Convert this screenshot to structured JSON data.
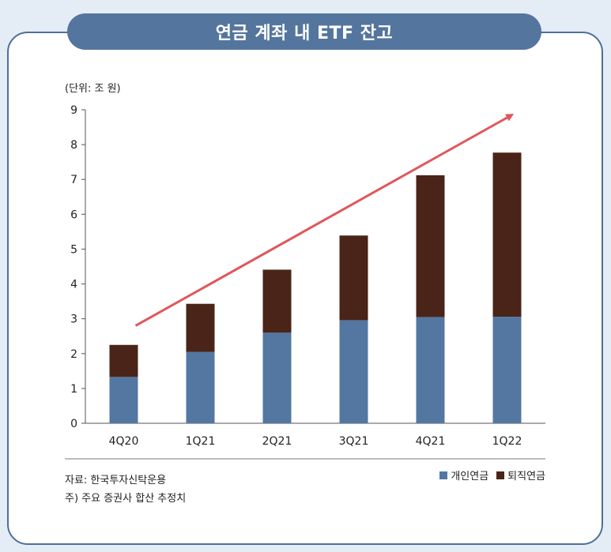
{
  "title": "연금 계좌 내 ETF 잔고",
  "unit_label": "(단위: 조 원)",
  "source": "자료: 한국투자신탁운용",
  "note": "주) 주요 증권사 합산 추정치",
  "colors": {
    "personal": "#5377a1",
    "retirement": "#4a2418",
    "arrow": "#e0575b",
    "frame": "#4e6f9a"
  },
  "chart_data": {
    "type": "bar",
    "stacked": true,
    "categories": [
      "4Q20",
      "1Q21",
      "2Q21",
      "3Q21",
      "4Q21",
      "1Q22"
    ],
    "series": [
      {
        "name": "개인연금",
        "values": [
          1.33,
          2.05,
          2.6,
          2.96,
          3.05,
          3.06
        ]
      },
      {
        "name": "퇴직연금",
        "values": [
          0.92,
          1.38,
          1.81,
          2.43,
          4.07,
          4.71
        ]
      }
    ],
    "yticks": [
      "0",
      "1",
      "2",
      "3",
      "4",
      "5",
      "6",
      "7",
      "8",
      "9"
    ],
    "ylim": [
      0,
      9
    ],
    "grid": false,
    "legend_position": "bottom-right",
    "trend_arrow": true
  }
}
